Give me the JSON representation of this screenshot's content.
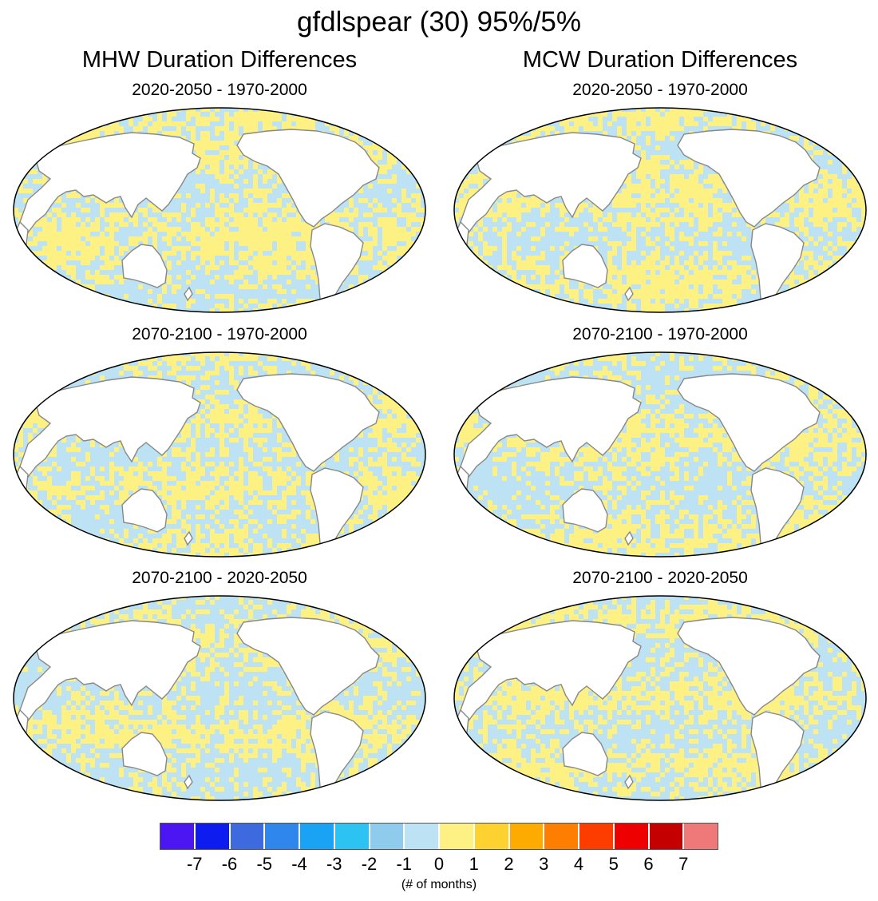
{
  "title": "gfdlspear (30) 95%/5%",
  "columns": [
    {
      "title": "MHW Duration Differences"
    },
    {
      "title": "MCW Duration Differences"
    }
  ],
  "panels": [
    {
      "column": 0,
      "row": 0,
      "subtitle": "2020-2050 - 1970-2000"
    },
    {
      "column": 1,
      "row": 0,
      "subtitle": "2020-2050 - 1970-2000"
    },
    {
      "column": 0,
      "row": 1,
      "subtitle": "2070-2100 - 1970-2000"
    },
    {
      "column": 1,
      "row": 1,
      "subtitle": "2070-2100 - 1970-2000"
    },
    {
      "column": 0,
      "row": 2,
      "subtitle": "2070-2100 - 2020-2050"
    },
    {
      "column": 1,
      "row": 2,
      "subtitle": "2070-2100 - 2020-2050"
    }
  ],
  "colorbar": {
    "tick_labels": [
      "-7",
      "-6",
      "-5",
      "-4",
      "-3",
      "-2",
      "-1",
      "0",
      "1",
      "2",
      "3",
      "4",
      "5",
      "6",
      "7"
    ],
    "colors": [
      "#4b16f2",
      "#0f1cef",
      "#3e6ae0",
      "#2f86ec",
      "#1aa2f4",
      "#2cc2f2",
      "#8ecbed",
      "#bce2f4",
      "#fdf183",
      "#fdd230",
      "#fdab00",
      "#fd7e00",
      "#fd3c00",
      "#ee0000",
      "#c40000",
      "#ef7878"
    ],
    "units_label": "(# of months)"
  },
  "map_colors": {
    "negative_small": "#bce2f4",
    "positive_small": "#fdf183",
    "land": "#ffffff",
    "coastline": "#888888",
    "border": "#000000"
  }
}
